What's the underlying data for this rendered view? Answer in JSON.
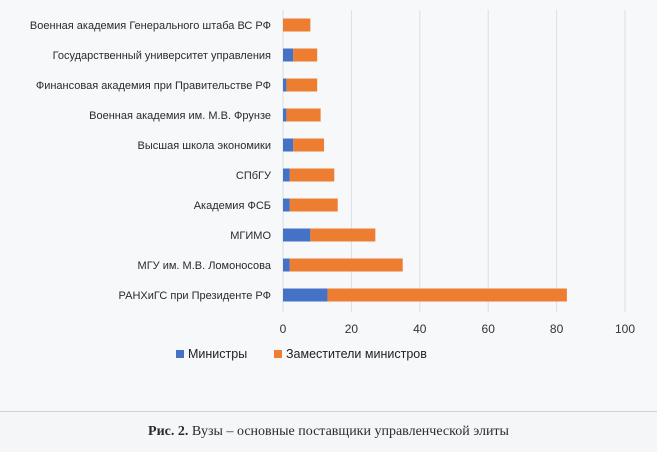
{
  "chart_data": {
    "type": "bar",
    "orientation": "horizontal",
    "stacked": true,
    "categories": [
      "Военная академия Генерального штаба ВС РФ",
      "Государственный университет управления",
      "Финансовая академия при Правительстве РФ",
      "Военная академия им. М.В. Фрунзе",
      "Высшая школа экономики",
      "СПбГУ",
      "Академия ФСБ",
      "МГИМО",
      "МГУ им. М.В. Ломоносова",
      "РАНХиГС при Президенте РФ"
    ],
    "series": [
      {
        "name": "Министры",
        "color": "#4472c4",
        "values": [
          0,
          3,
          1,
          1,
          3,
          2,
          2,
          8,
          2,
          13
        ]
      },
      {
        "name": "Заместители министров",
        "color": "#ed7d31",
        "values": [
          8,
          7,
          9,
          10,
          9,
          13,
          14,
          19,
          33,
          70
        ]
      }
    ],
    "xlim": [
      0,
      100
    ],
    "xticks": [
      "0",
      "20",
      "40",
      "60",
      "80",
      "100"
    ],
    "grid": "vertical",
    "legend": "bottom"
  },
  "caption": {
    "label": "Рис. 2.",
    "text": " Вузы – основные поставщики управленческой элиты"
  }
}
